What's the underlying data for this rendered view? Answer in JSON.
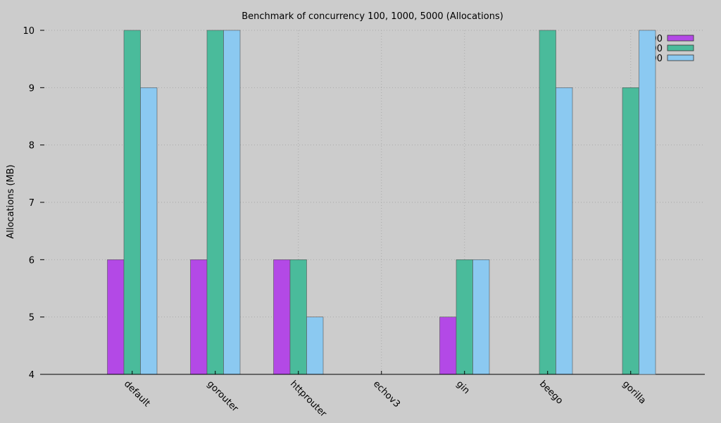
{
  "chart_data": {
    "type": "bar",
    "title": "Benchmark of concurrency 100, 1000, 5000 (Allocations)",
    "xlabel": "",
    "ylabel": "Allocations (MB)",
    "ylim": [
      4,
      10
    ],
    "yticks": [
      4,
      5,
      6,
      7,
      8,
      9,
      10
    ],
    "grid": true,
    "legend_position": "top-right",
    "categories": [
      "default",
      "gorouter",
      "httprouter",
      "echov3",
      "gin",
      "beego",
      "gorilla"
    ],
    "series": [
      {
        "name": "",
        "legend_label": "00",
        "color": "#b349e6",
        "values": [
          6,
          6,
          6,
          4,
          5,
          4,
          4
        ]
      },
      {
        "name": "",
        "legend_label": "00",
        "color": "#4abb9b",
        "values": [
          10,
          10,
          6,
          4,
          6,
          10,
          9
        ]
      },
      {
        "name": "",
        "legend_label": "00",
        "color": "#8bc9f1",
        "values": [
          9,
          10,
          5,
          4,
          6,
          9,
          10
        ]
      }
    ]
  }
}
